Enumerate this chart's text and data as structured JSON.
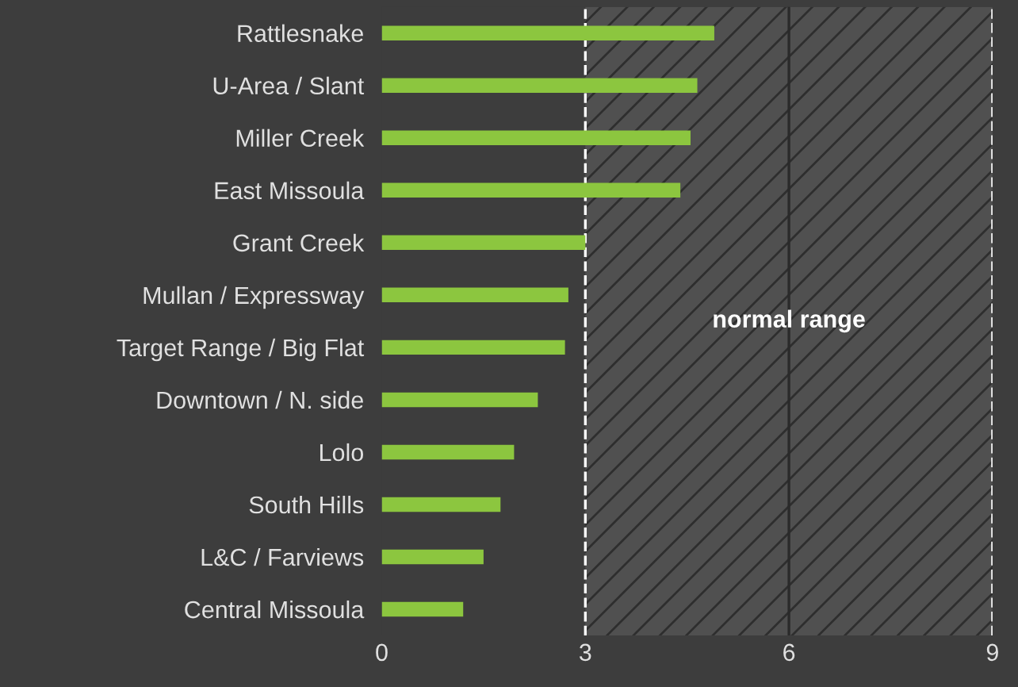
{
  "chart_data": {
    "type": "bar",
    "orientation": "horizontal",
    "categories": [
      "Rattlesnake",
      "U-Area / Slant",
      "Miller Creek",
      "East Missoula",
      "Grant Creek",
      "Mullan / Expressway",
      "Target Range / Big Flat",
      "Downtown / N. side",
      "Lolo",
      "South Hills",
      "L&C / Farviews",
      "Central Missoula"
    ],
    "values": [
      4.9,
      4.65,
      4.55,
      4.4,
      3.0,
      2.75,
      2.7,
      2.3,
      1.95,
      1.75,
      1.5,
      1.2
    ],
    "color": "#8cc63f",
    "xlim": [
      0,
      9
    ],
    "xticks": [
      0,
      3,
      6,
      9
    ],
    "grid": false,
    "legend": false,
    "bands": [
      {
        "axis": "x",
        "from": 3,
        "to": 9,
        "label": "normal range",
        "color": "#505050"
      }
    ],
    "ref_lines": [
      {
        "axis": "x",
        "value": 3,
        "line_style": "dashed",
        "color": "#ffffff"
      },
      {
        "axis": "x",
        "value": 6,
        "line_style": "solid",
        "color": "#2a2a2a"
      },
      {
        "axis": "x",
        "value": 9,
        "line_style": "dashed",
        "color": "#ffffff"
      }
    ]
  }
}
